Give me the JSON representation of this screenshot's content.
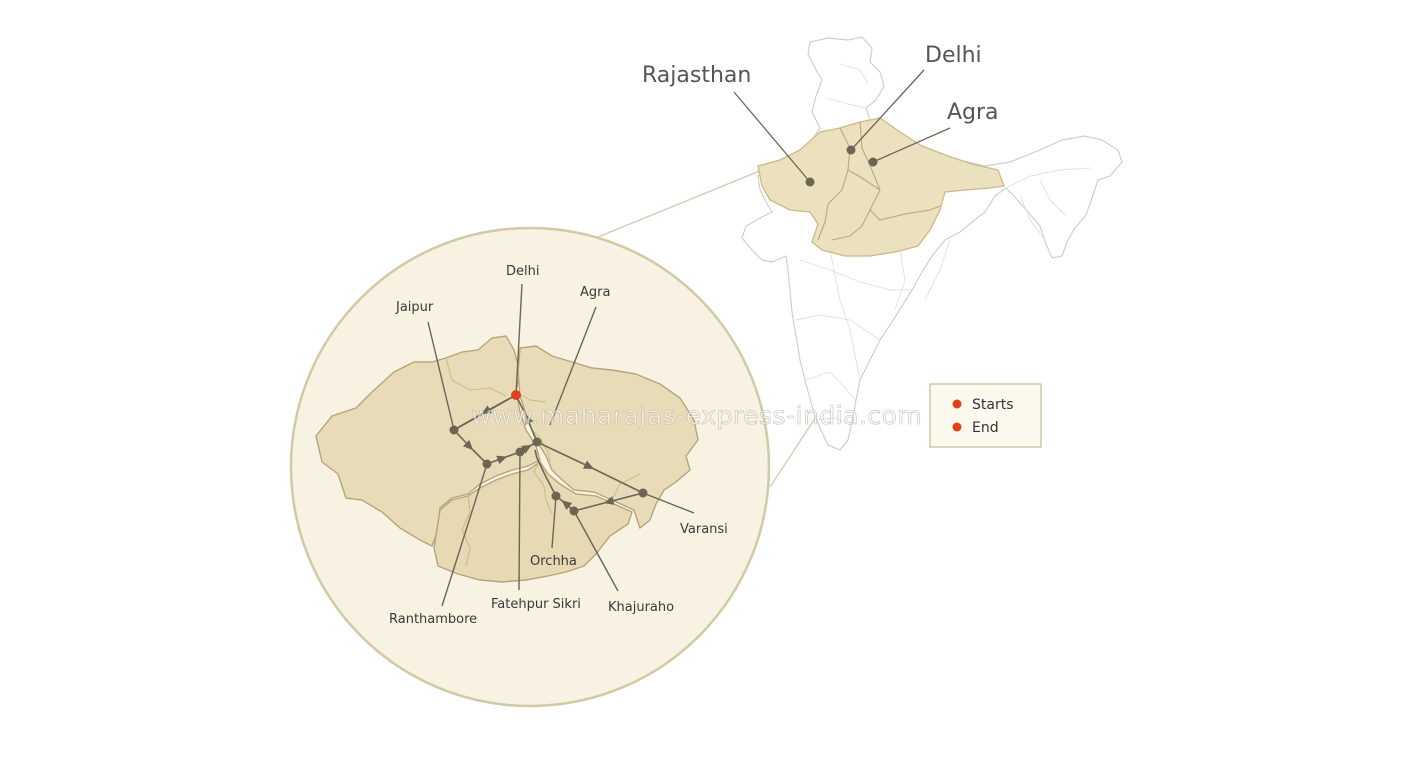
{
  "overview_map": {
    "labels": {
      "rajasthan": "Rajasthan",
      "delhi": "Delhi",
      "agra": "Agra"
    }
  },
  "route_map": {
    "cities": {
      "delhi": "Delhi",
      "agra": "Agra",
      "jaipur": "Jaipur",
      "varanasi": "Varansi",
      "orchha": "Orchha",
      "khajuraho": "Khajuraho",
      "fatehpur_sikri": "Fatehpur Sikri",
      "ranthambore": "Ranthambore"
    }
  },
  "legend": {
    "starts": "Starts",
    "end": "End"
  },
  "watermark": "www.maharajas-express-india.com",
  "colors": {
    "region_fill": "#e8dcb8",
    "circle_fill": "#f7f2e1",
    "circle_stroke": "#cfc59f",
    "route_line": "#6b6656",
    "city_dot": "#6b6552",
    "start_end_dot": "#e0401c",
    "india_outline": "#d2d2d2"
  }
}
